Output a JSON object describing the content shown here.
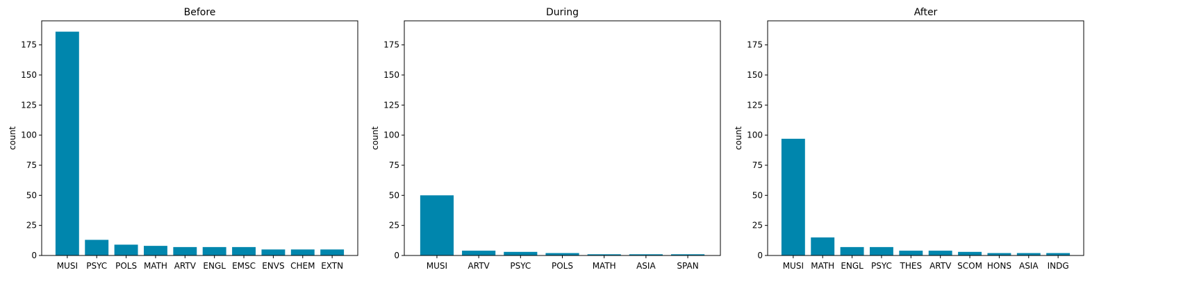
{
  "bar_color": "#0086AD",
  "chart_data": [
    {
      "type": "bar",
      "title": "Before",
      "ylabel": "count",
      "ylim": [
        0,
        195
      ],
      "yticks": [
        0,
        25,
        50,
        75,
        100,
        125,
        150,
        175
      ],
      "categories": [
        "MUSI",
        "PSYC",
        "POLS",
        "MATH",
        "ARTV",
        "ENGL",
        "EMSC",
        "ENVS",
        "CHEM",
        "EXTN"
      ],
      "values": [
        186,
        13,
        9,
        8,
        7,
        7,
        7,
        5,
        5,
        5
      ]
    },
    {
      "type": "bar",
      "title": "During",
      "ylabel": "count",
      "ylim": [
        0,
        195
      ],
      "yticks": [
        0,
        25,
        50,
        75,
        100,
        125,
        150,
        175
      ],
      "categories": [
        "MUSI",
        "ARTV",
        "PSYC",
        "POLS",
        "MATH",
        "ASIA",
        "SPAN"
      ],
      "values": [
        50,
        4,
        3,
        2,
        1,
        1,
        1
      ]
    },
    {
      "type": "bar",
      "title": "After",
      "ylabel": "count",
      "ylim": [
        0,
        195
      ],
      "yticks": [
        0,
        25,
        50,
        75,
        100,
        125,
        150,
        175
      ],
      "categories": [
        "MUSI",
        "MATH",
        "ENGL",
        "PSYC",
        "THES",
        "ARTV",
        "SCOM",
        "HONS",
        "ASIA",
        "INDG"
      ],
      "values": [
        97,
        15,
        7,
        7,
        4,
        4,
        3,
        2,
        2,
        2
      ]
    }
  ]
}
